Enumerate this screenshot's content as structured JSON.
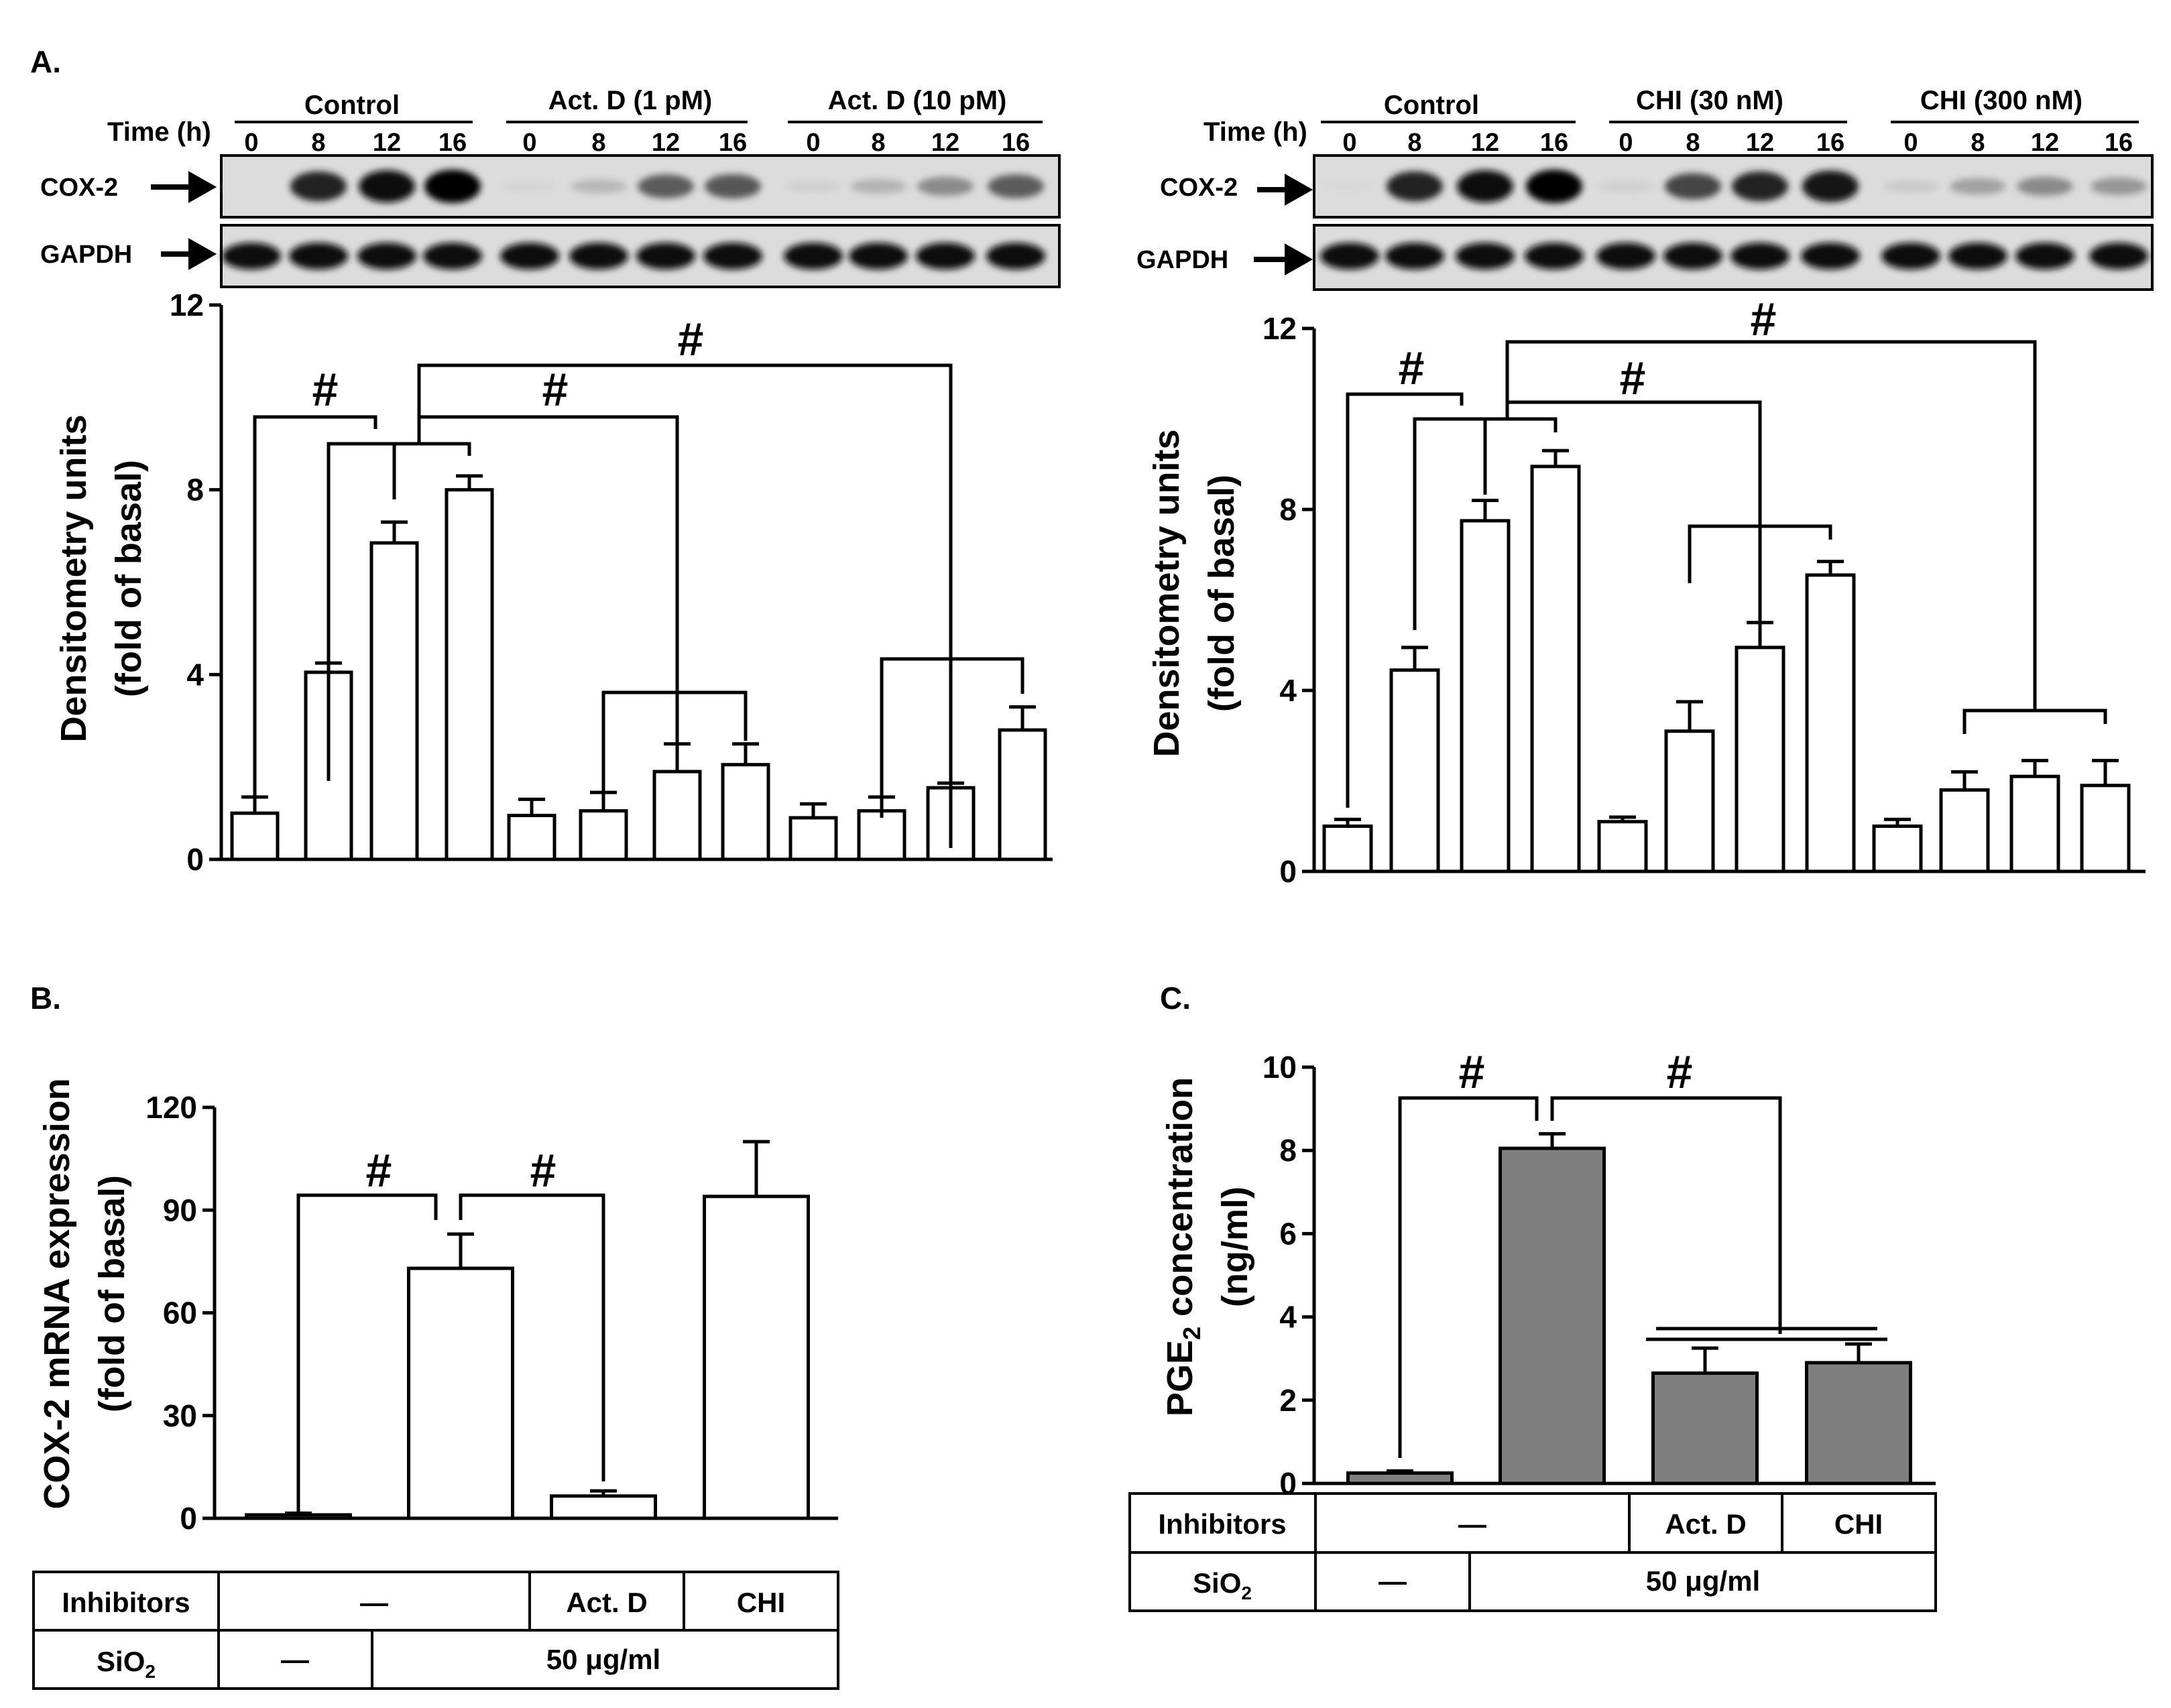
{
  "panel_labels": {
    "a": "A.",
    "b": "B.",
    "c": "C."
  },
  "blot_labels": {
    "time": "Time (h)",
    "cox2": "COX-2",
    "gapdh": "GAPDH"
  },
  "sig_symbol": "#",
  "chart_data": [
    {
      "id": "A1",
      "type": "bar",
      "ylabel": "Densitometry units",
      "ylabel2": "(fold of basal)",
      "ylim": [
        0,
        12
      ],
      "yticks": [
        "0",
        "4",
        "8",
        "12"
      ],
      "groups": [
        {
          "name": "Control",
          "times": [
            "0",
            "8",
            "12",
            "16"
          ]
        },
        {
          "name": "Act. D (1 pM)",
          "times": [
            "0",
            "8",
            "12",
            "16"
          ]
        },
        {
          "name": "Act. D (10 pM)",
          "times": [
            "0",
            "8",
            "12",
            "16"
          ]
        }
      ],
      "values": [
        1.0,
        4.05,
        6.85,
        8.0,
        0.95,
        1.05,
        1.9,
        2.05,
        0.9,
        1.05,
        1.55,
        2.8
      ],
      "errors": [
        0.35,
        0.2,
        0.45,
        0.3,
        0.35,
        0.4,
        0.6,
        0.45,
        0.3,
        0.3,
        0.1,
        0.5
      ],
      "cox2_band_intensity": [
        0.05,
        0.85,
        0.95,
        1.0,
        0.08,
        0.2,
        0.6,
        0.62,
        0.1,
        0.22,
        0.4,
        0.6
      ]
    },
    {
      "id": "A2",
      "type": "bar",
      "ylabel": "Densitometry units",
      "ylabel2": "(fold of basal)",
      "ylim": [
        0,
        12
      ],
      "yticks": [
        "0",
        "4",
        "8",
        "12"
      ],
      "groups": [
        {
          "name": "Control",
          "times": [
            "0",
            "8",
            "12",
            "16"
          ]
        },
        {
          "name": "CHI (30 nM)",
          "times": [
            "0",
            "8",
            "12",
            "16"
          ]
        },
        {
          "name": "CHI (300 nM)",
          "times": [
            "0",
            "8",
            "12",
            "16"
          ]
        }
      ],
      "values": [
        1.0,
        4.45,
        7.75,
        8.95,
        1.1,
        3.1,
        4.95,
        6.55,
        1.0,
        1.8,
        2.1,
        1.9
      ],
      "errors": [
        0.15,
        0.5,
        0.45,
        0.35,
        0.1,
        0.65,
        0.55,
        0.3,
        0.15,
        0.4,
        0.35,
        0.55
      ],
      "cox2_band_intensity": [
        0.06,
        0.85,
        0.95,
        1.0,
        0.1,
        0.7,
        0.85,
        0.92,
        0.12,
        0.3,
        0.4,
        0.35
      ]
    },
    {
      "id": "B",
      "type": "bar",
      "ylabel": "COX-2 mRNA expression",
      "ylabel2": "(fold of basal)",
      "ylim": [
        0,
        120
      ],
      "yticks": [
        "0",
        "30",
        "60",
        "90",
        "120"
      ],
      "values": [
        1,
        73,
        6.5,
        94
      ],
      "errors": [
        0.5,
        10,
        1.5,
        16
      ],
      "bar_color": "#ffffff",
      "table": {
        "row1_label": "Inhibitors",
        "row1_dash": "—",
        "row1_a": "Act. D",
        "row1_b": "CHI",
        "row2_label": "SiO",
        "row2_sub": "2",
        "row2_dash": "—",
        "row2_value": "50 μg/ml"
      }
    },
    {
      "id": "C",
      "type": "bar",
      "ylabel_main": "PGE",
      "ylabel_sub": "2",
      "ylabel_rest": " concentration",
      "ylabel2": "(ng/ml)",
      "ylim": [
        0,
        10
      ],
      "yticks": [
        "0",
        "2",
        "4",
        "6",
        "8",
        "10"
      ],
      "values": [
        0.25,
        8.05,
        2.65,
        2.9
      ],
      "errors": [
        0.05,
        0.35,
        0.6,
        0.45
      ],
      "bar_color": "#7f7f7f",
      "table": {
        "row1_label": "Inhibitors",
        "row1_dash": "—",
        "row1_a": "Act. D",
        "row1_b": "CHI",
        "row2_label": "SiO",
        "row2_sub": "2",
        "row2_dash": "—",
        "row2_value": "50 μg/ml"
      }
    }
  ]
}
